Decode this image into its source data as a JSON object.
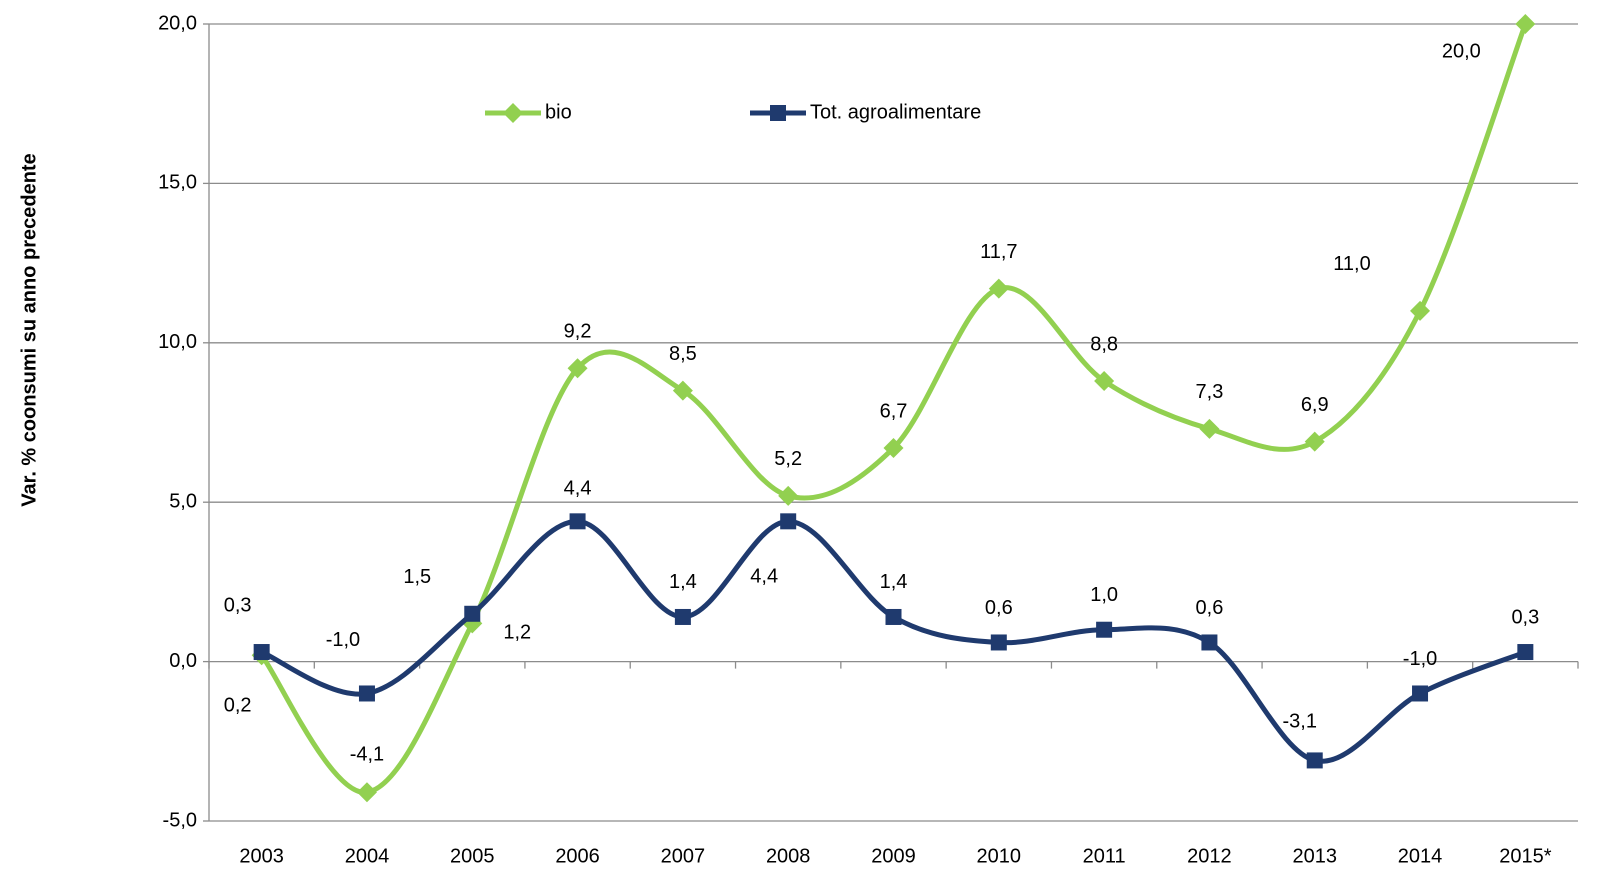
{
  "chart_data": {
    "type": "line",
    "y_label": "Var. % coonsumi su anno precedente",
    "categories": [
      "2003",
      "2004",
      "2005",
      "2006",
      "2007",
      "2008",
      "2009",
      "2010",
      "2011",
      "2012",
      "2013",
      "2014",
      "2015*"
    ],
    "series": [
      {
        "name": "bio",
        "color": "#92d050",
        "marker": "diamond",
        "values": [
          0.2,
          -4.1,
          1.2,
          9.2,
          8.5,
          5.2,
          6.7,
          11.7,
          8.8,
          7.3,
          6.9,
          11.0,
          20.0
        ],
        "value_labels": [
          "0,2",
          "-4,1",
          "1,2",
          "9,2",
          "8,5",
          "5,2",
          "6,7",
          "11,7",
          "8,8",
          "7,3",
          "6,9",
          "11,0",
          "20,0"
        ]
      },
      {
        "name": "Tot. agroalimentare",
        "color": "#1f3a6e",
        "marker": "square",
        "values": [
          0.3,
          -1.0,
          1.5,
          4.4,
          1.4,
          4.4,
          1.4,
          0.6,
          1.0,
          0.6,
          -3.1,
          -1.0,
          0.3
        ],
        "value_labels": [
          "0,3",
          "-1,0",
          "1,5",
          "4,4",
          "1,4",
          "4,4",
          "1,4",
          "0,6",
          "1,0",
          "0,6",
          "-3,1",
          "-1,0",
          "0,3"
        ]
      }
    ],
    "ylim": [
      -5,
      20
    ],
    "yticks": [
      {
        "value": -5,
        "label": "-5,0"
      },
      {
        "value": 0,
        "label": "0,0"
      },
      {
        "value": 5,
        "label": "5,0"
      },
      {
        "value": 10,
        "label": "10,0"
      },
      {
        "value": 15,
        "label": "15,0"
      },
      {
        "value": 20,
        "label": "20,0"
      }
    ],
    "grid": true,
    "smooth": true,
    "legend": "top"
  }
}
